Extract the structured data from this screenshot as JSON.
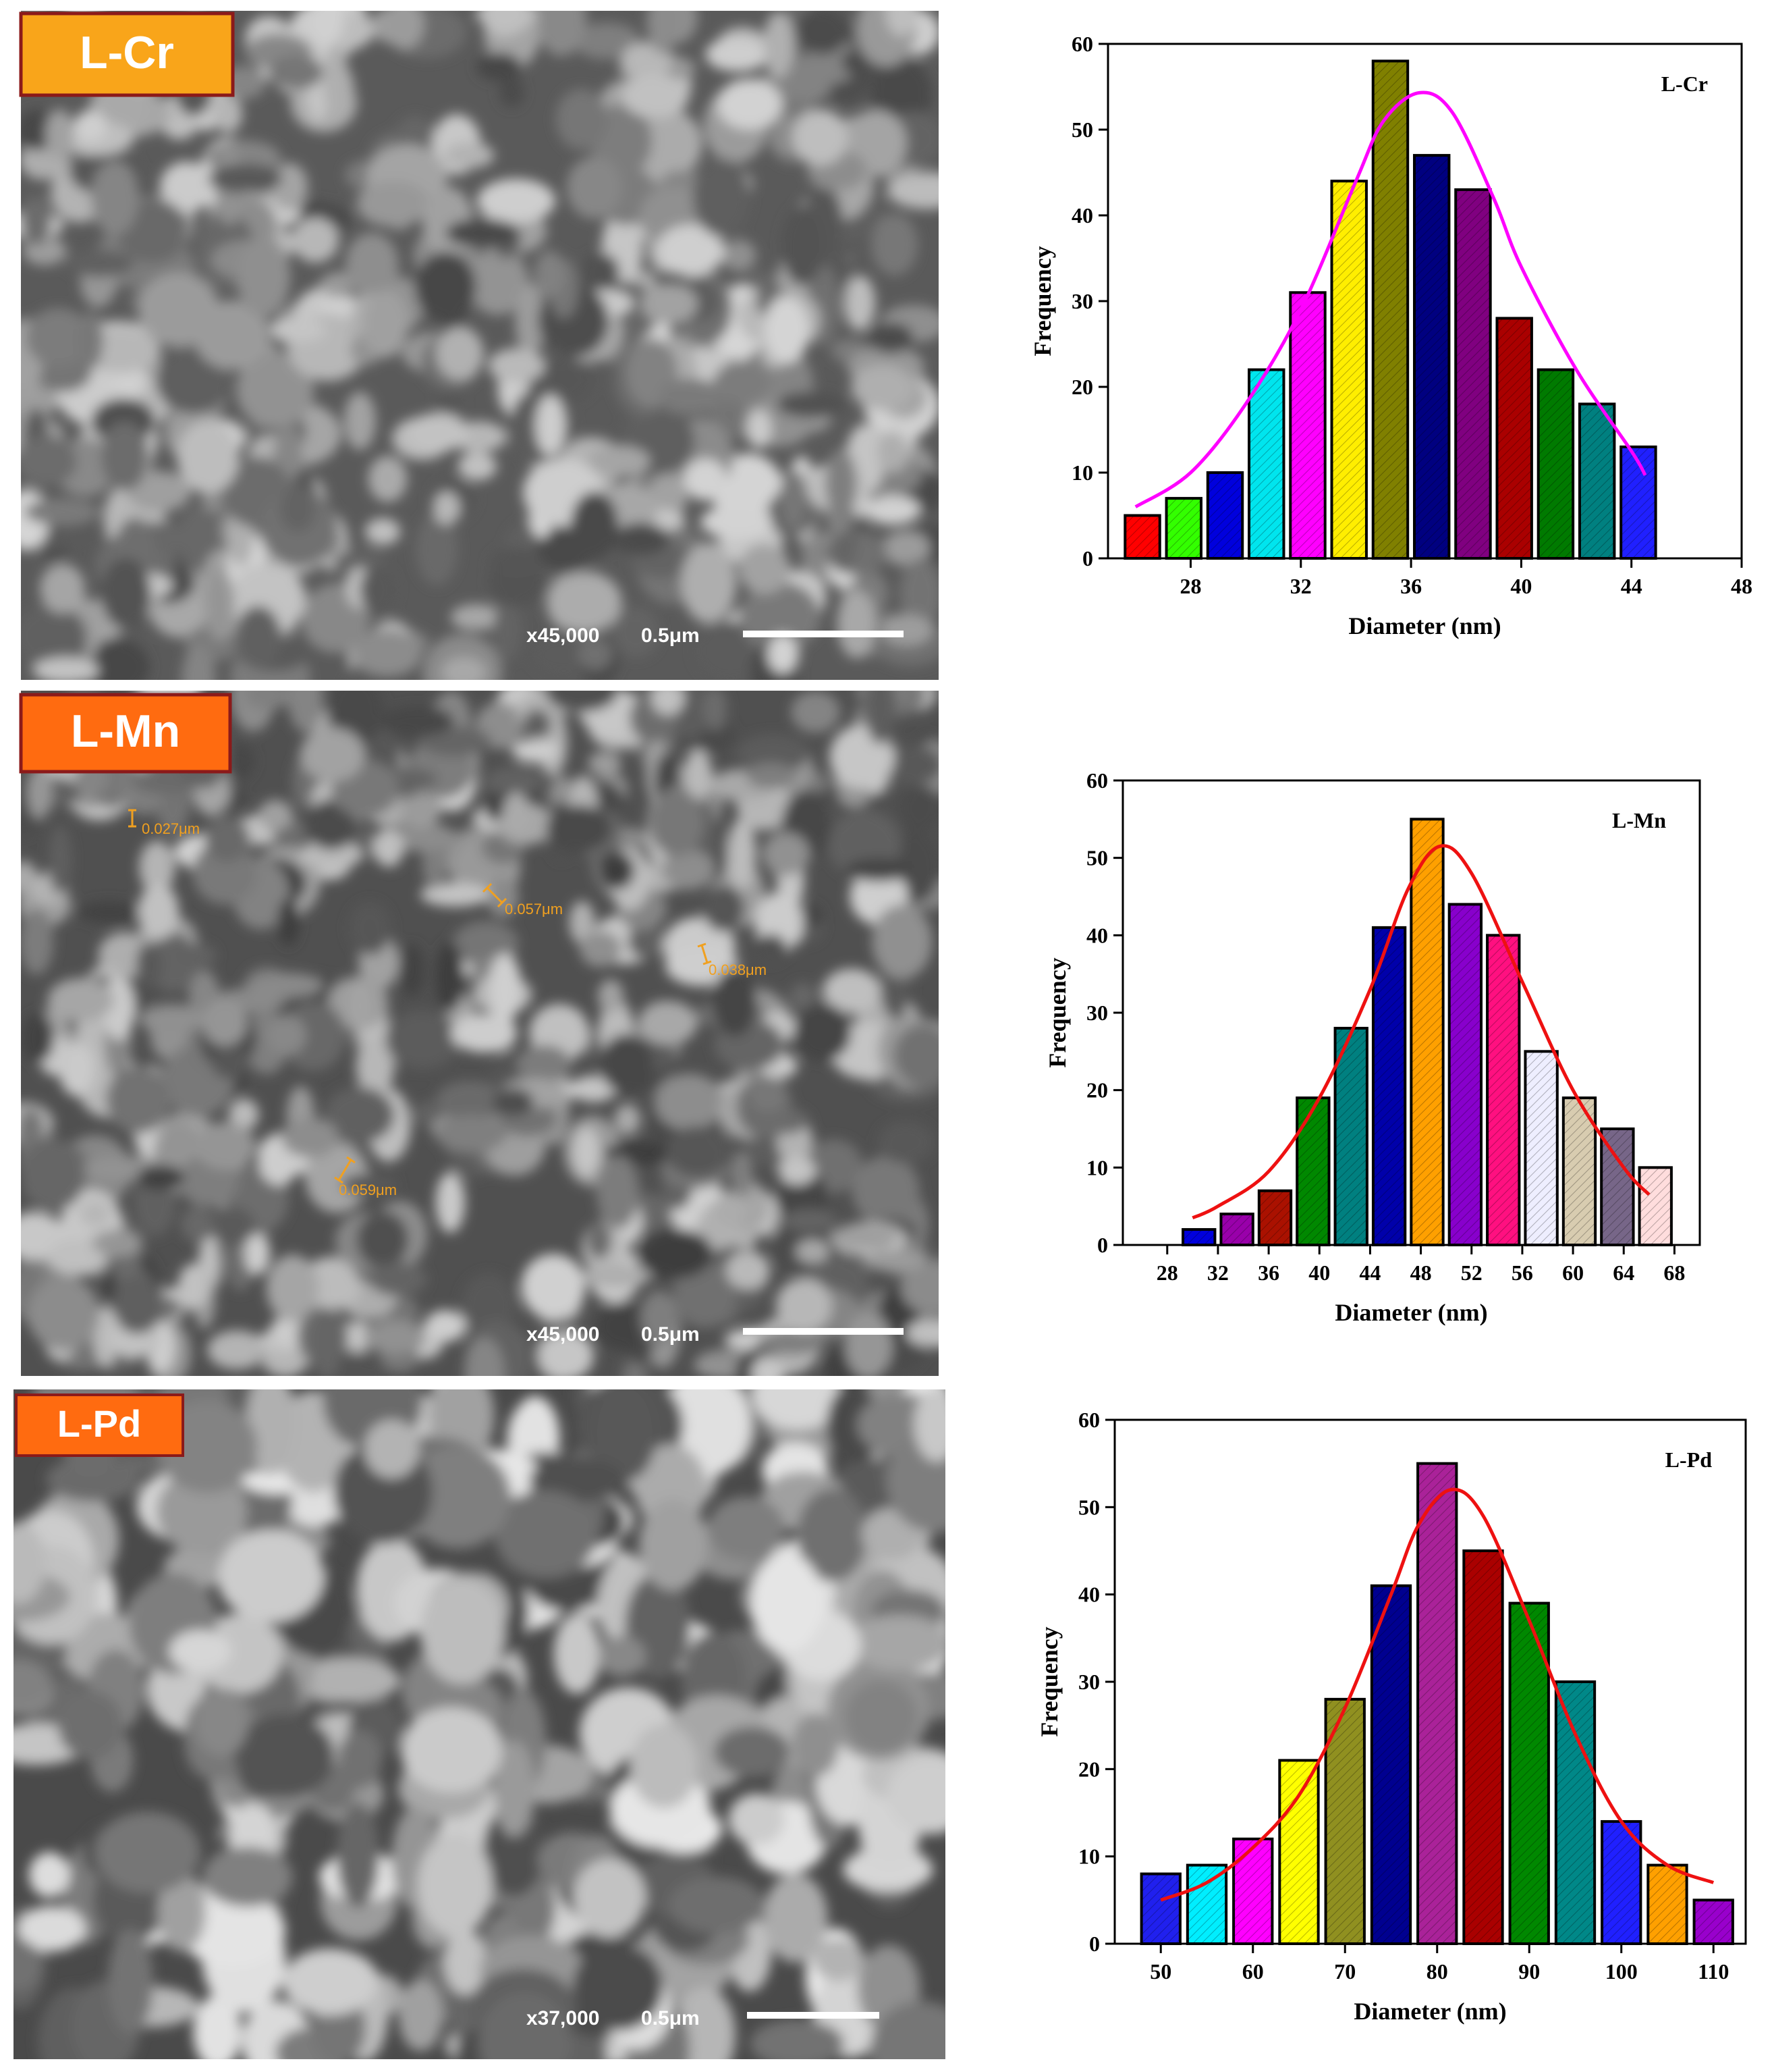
{
  "sem_panels": [
    {
      "label": "L-Cr",
      "magnification": "x45,000",
      "scale": "0.5μm"
    },
    {
      "label": "L-Mn",
      "magnification": "x45,000",
      "scale": "0.5μm",
      "measurements": [
        "0.027μm",
        "0.057μm",
        "0.038μm",
        "0.059μm"
      ]
    },
    {
      "label": "L-Pd",
      "magnification": "x37,000",
      "scale": "0.5μm"
    }
  ],
  "chart_data": [
    {
      "type": "histogram",
      "title": "L-Cr",
      "x_label": "Diameter (nm)",
      "y_label": "Frequency",
      "bins": [
        25.5,
        27,
        28.5,
        30,
        31.5,
        33,
        34.5,
        36,
        37.5,
        39,
        40.5,
        42,
        43.5,
        45
      ],
      "values": [
        5,
        7,
        10,
        22,
        31,
        44,
        58,
        47,
        43,
        28,
        22,
        18,
        13
      ],
      "colors": [
        "#ff0000",
        "#33ff00",
        "#0000dd",
        "#00e5ee",
        "#ff00ff",
        "#ffee00",
        "#808000",
        "#000080",
        "#800080",
        "#aa0000",
        "#007a00",
        "#008080",
        "#2020ff"
      ],
      "xlim": [
        25,
        48
      ],
      "ylim": [
        0,
        60
      ],
      "xticks": [
        28,
        32,
        36,
        40,
        44,
        48
      ],
      "yticks": [
        0,
        10,
        20,
        30,
        40,
        50,
        60
      ],
      "fit": {
        "color": "#ff00ff",
        "x": [
          26,
          28,
          30,
          32,
          34,
          35,
          36.3,
          37.5,
          39,
          40,
          42,
          44,
          44.5
        ],
        "y": [
          6,
          10,
          18,
          29,
          44,
          51,
          54.3,
          52,
          42,
          34,
          22,
          12.5,
          9.7
        ]
      }
    },
    {
      "type": "histogram",
      "title": "L-Mn",
      "x_label": "Diameter (nm)",
      "y_label": "Frequency",
      "bins": [
        29,
        32,
        35,
        38,
        41,
        44,
        47,
        50,
        53,
        56,
        59,
        62,
        65,
        68
      ],
      "values": [
        2,
        4,
        7,
        19,
        28,
        41,
        55,
        44,
        40,
        25,
        19,
        15,
        10
      ],
      "colors": [
        "#0000dd",
        "#9900aa",
        "#aa1100",
        "#008800",
        "#008080",
        "#0000aa",
        "#ffa000",
        "#8800cc",
        "#ff1080",
        "#eeeeff",
        "#d8ccb0",
        "#776688",
        "#ffdddd"
      ],
      "xlim": [
        24.5,
        70
      ],
      "ylim": [
        0,
        60
      ],
      "xticks": [
        28,
        32,
        36,
        40,
        44,
        48,
        52,
        56,
        60,
        64,
        68
      ],
      "yticks": [
        0,
        10,
        20,
        30,
        40,
        50,
        60
      ],
      "fit": {
        "color": "#ee1111",
        "x": [
          30,
          32,
          36,
          40,
          44,
          47,
          49.5,
          52,
          56,
          60,
          64,
          66
        ],
        "y": [
          3.5,
          5,
          9.5,
          19,
          33,
          46,
          51.5,
          48,
          34,
          20,
          10,
          6.5
        ]
      }
    },
    {
      "type": "histogram",
      "title": "L-Pd",
      "x_label": "Diameter (nm)",
      "y_label": "Frequency",
      "bins": [
        47.5,
        52.5,
        57.5,
        62.5,
        67.5,
        72.5,
        77.5,
        82.5,
        87.5,
        92.5,
        97.5,
        102.5,
        107.5,
        112.5
      ],
      "values": [
        8,
        9,
        12,
        21,
        28,
        41,
        55,
        45,
        39,
        30,
        14,
        9,
        5
      ],
      "colors": [
        "#2020ee",
        "#00eeff",
        "#ff00ff",
        "#ffff00",
        "#909020",
        "#000090",
        "#aa2299",
        "#aa0000",
        "#008800",
        "#008888",
        "#2020ff",
        "#ffa000",
        "#9900cc"
      ],
      "xlim": [
        45,
        113.5
      ],
      "ylim": [
        0,
        60
      ],
      "xticks": [
        50,
        60,
        70,
        80,
        90,
        100,
        110
      ],
      "yticks": [
        0,
        10,
        20,
        30,
        40,
        50,
        60
      ],
      "fit": {
        "color": "#ee1111",
        "x": [
          50,
          55,
          60,
          65,
          70,
          75,
          78,
          81.5,
          85,
          90,
          95,
          100,
          105,
          110
        ],
        "y": [
          5,
          7,
          11,
          17,
          27,
          40,
          48,
          52,
          49,
          37,
          24,
          14,
          9,
          7
        ]
      }
    }
  ]
}
